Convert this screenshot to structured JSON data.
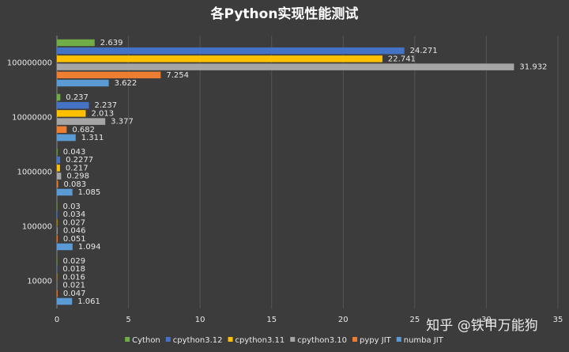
{
  "chart_data": {
    "type": "bar",
    "orientation": "horizontal",
    "title": "各Python实现性能测试",
    "categories": [
      "100000000",
      "10000000",
      "1000000",
      "100000",
      "10000"
    ],
    "series": [
      {
        "name": "Cython",
        "color": "#70ad47",
        "values": [
          2.639,
          0.237,
          0.043,
          0.03,
          0.029
        ]
      },
      {
        "name": "cpython3.12",
        "color": "#4472c4",
        "values": [
          24.271,
          2.237,
          0.2277,
          0.034,
          0.018
        ]
      },
      {
        "name": "cpython3.11",
        "color": "#ffc000",
        "values": [
          22.741,
          2.013,
          0.217,
          0.027,
          0.016
        ]
      },
      {
        "name": "cpython3.10",
        "color": "#a5a5a5",
        "values": [
          31.932,
          3.377,
          0.298,
          0.046,
          0.021
        ]
      },
      {
        "name": "pypy JIT",
        "color": "#ed7d31",
        "values": [
          7.254,
          0.682,
          0.083,
          0.051,
          0.047
        ]
      },
      {
        "name": "numba JIT",
        "color": "#5b9bd5",
        "values": [
          3.622,
          1.311,
          1.085,
          1.094,
          1.061
        ]
      }
    ],
    "xlim": [
      0,
      35
    ],
    "xticks": [
      0,
      5,
      10,
      15,
      20,
      25,
      30,
      35
    ],
    "grid": true,
    "legend": "bottom",
    "watermark": "知乎 @铁甲万能狗"
  }
}
